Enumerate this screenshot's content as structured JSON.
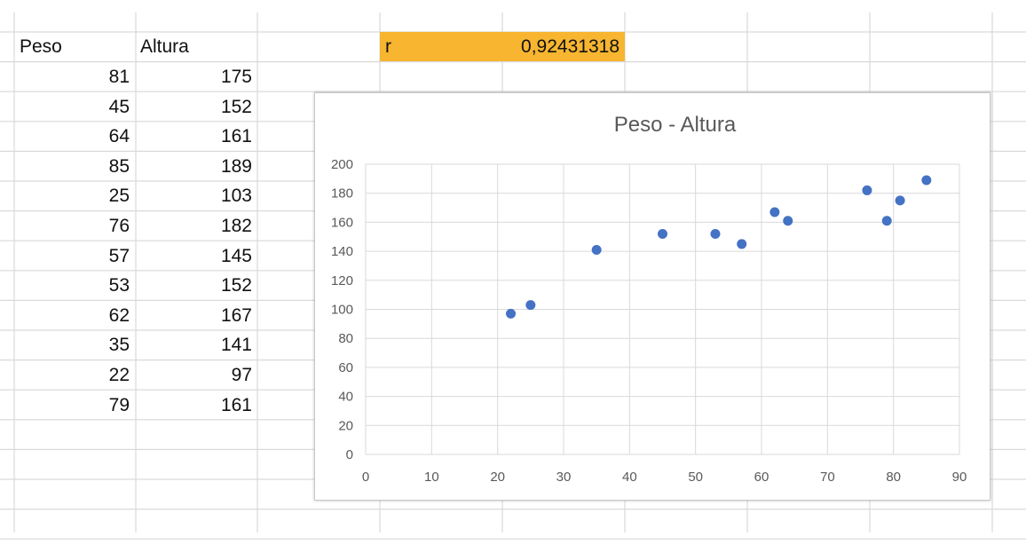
{
  "sheet": {
    "headers": {
      "col_a": "Peso",
      "col_b": "Altura"
    },
    "rows": [
      {
        "peso": "81",
        "altura": "175"
      },
      {
        "peso": "45",
        "altura": "152"
      },
      {
        "peso": "64",
        "altura": "161"
      },
      {
        "peso": "85",
        "altura": "189"
      },
      {
        "peso": "25",
        "altura": "103"
      },
      {
        "peso": "76",
        "altura": "182"
      },
      {
        "peso": "57",
        "altura": "145"
      },
      {
        "peso": "53",
        "altura": "152"
      },
      {
        "peso": "62",
        "altura": "167"
      },
      {
        "peso": "35",
        "altura": "141"
      },
      {
        "peso": "22",
        "altura": "97"
      },
      {
        "peso": "79",
        "altura": "161"
      }
    ],
    "r_cell": {
      "label": "r",
      "value": "0,92431318",
      "color": "#f7b530"
    }
  },
  "chart_data": {
    "type": "scatter",
    "title": "Peso - Altura",
    "xlabel": "",
    "ylabel": "",
    "xlim": [
      0,
      90
    ],
    "ylim": [
      0,
      200
    ],
    "xticks": [
      0,
      10,
      20,
      30,
      40,
      50,
      60,
      70,
      80,
      90
    ],
    "yticks": [
      0,
      20,
      40,
      60,
      80,
      100,
      120,
      140,
      160,
      180,
      200
    ],
    "grid": true,
    "point_color": "#4472c4",
    "points": [
      {
        "x": 81,
        "y": 175
      },
      {
        "x": 45,
        "y": 152
      },
      {
        "x": 64,
        "y": 161
      },
      {
        "x": 85,
        "y": 189
      },
      {
        "x": 25,
        "y": 103
      },
      {
        "x": 76,
        "y": 182
      },
      {
        "x": 57,
        "y": 145
      },
      {
        "x": 53,
        "y": 152
      },
      {
        "x": 62,
        "y": 167
      },
      {
        "x": 35,
        "y": 141
      },
      {
        "x": 22,
        "y": 97
      },
      {
        "x": 79,
        "y": 161
      }
    ]
  }
}
